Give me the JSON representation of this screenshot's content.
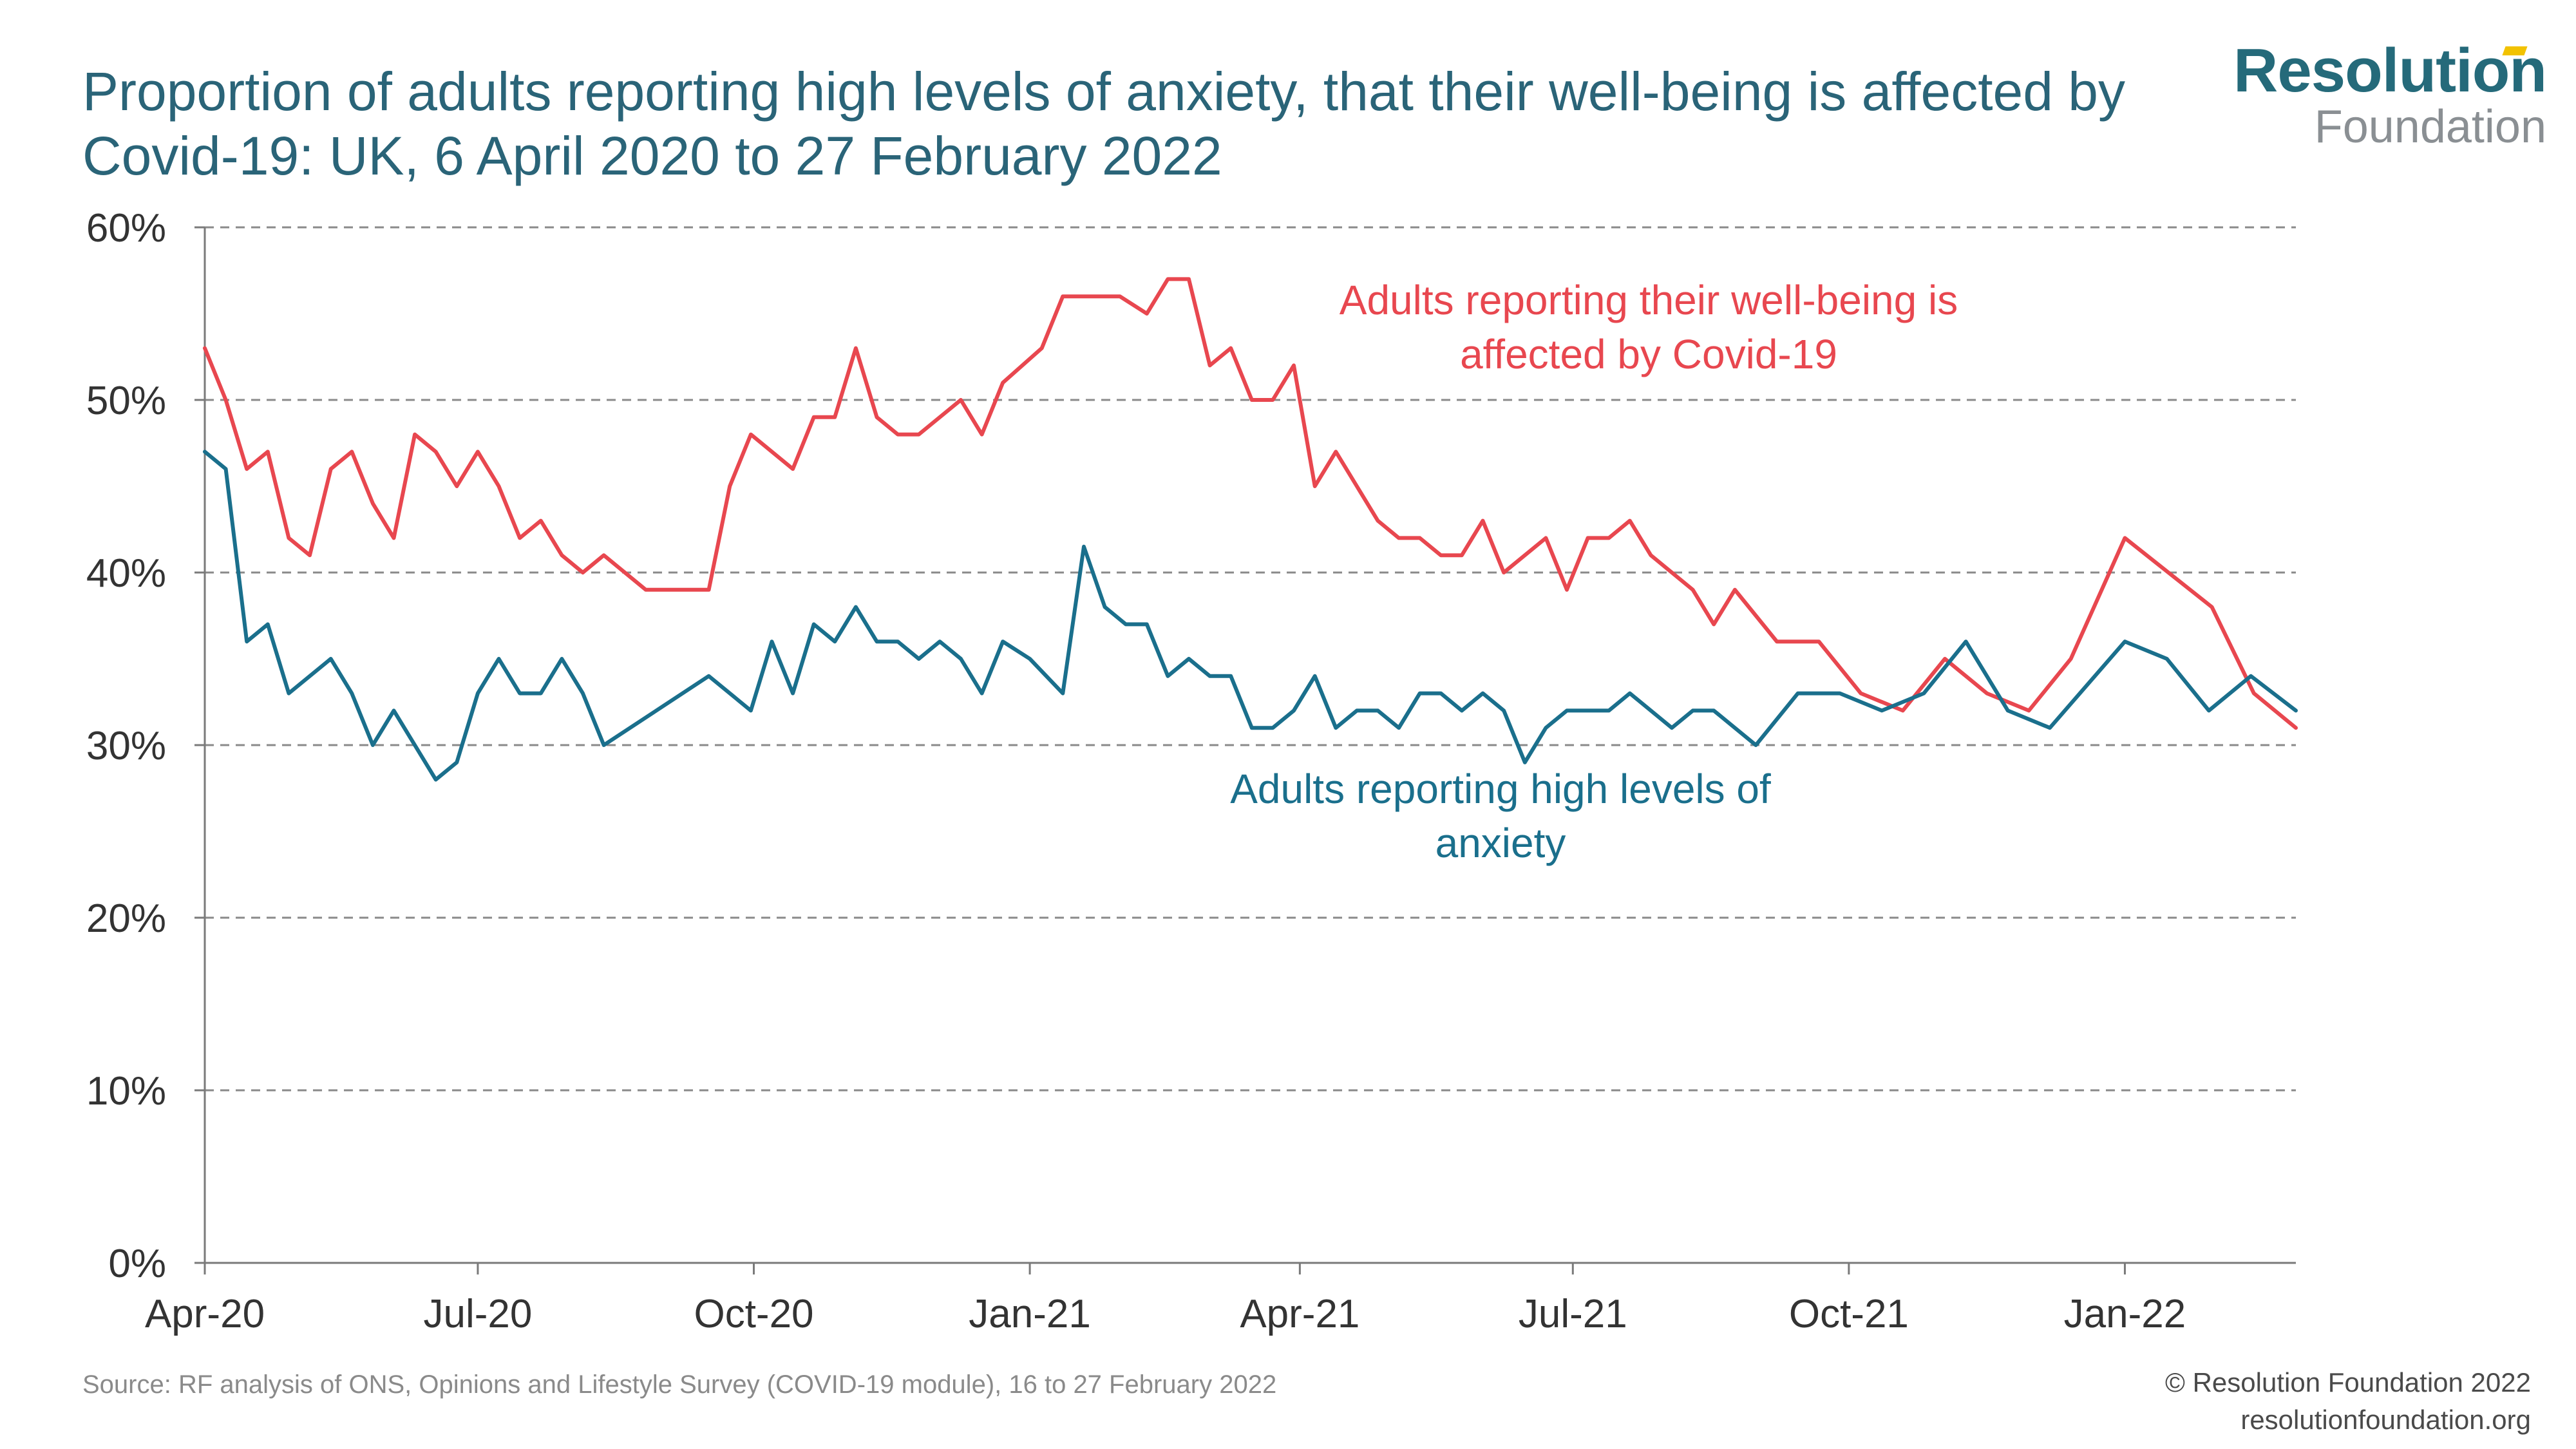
{
  "title": "Proportion of adults reporting high levels of anxiety, that their well-being is affected by Covid-19: UK, 6 April 2020 to 27 February 2022",
  "logo": {
    "line1": "Resolution",
    "line2": "Foundation"
  },
  "source": "Source: RF analysis of ONS, Opinions and Lifestyle Survey (COVID-19 module), 16 to 27 February 2022",
  "copyright": {
    "line1": "© Resolution Foundation 2022",
    "line2": "resolutionfoundation.org"
  },
  "colors": {
    "wellbeing": "#e8474f",
    "anxiety": "#1a6f8c",
    "axis": "#7a7a7a",
    "grid": "#8a8a8a",
    "text": "#333333"
  },
  "chart_data": {
    "type": "line",
    "ylim": [
      0,
      60
    ],
    "xlim": [
      "2020-04-01",
      "2022-02-27"
    ],
    "yticks": [
      0,
      10,
      20,
      30,
      40,
      50,
      60
    ],
    "ytick_labels": [
      "0%",
      "10%",
      "20%",
      "30%",
      "40%",
      "50%",
      "60%"
    ],
    "xticks": [
      "2020-04-01",
      "2020-07-01",
      "2020-10-01",
      "2021-01-01",
      "2021-04-01",
      "2021-07-01",
      "2021-10-01",
      "2022-01-01"
    ],
    "xtick_labels": [
      "Apr-20",
      "Jul-20",
      "Oct-20",
      "Jan-21",
      "Apr-21",
      "Jul-21",
      "Oct-21",
      "Jan-22"
    ],
    "grid": "horizontal dashed",
    "series": [
      {
        "name": "Adults reporting their well-being is affected by Covid-19",
        "label_lines": [
          "Adults reporting their well-being is",
          "affected by Covid-19"
        ],
        "color": "#e8474f",
        "points": [
          [
            "2020-04-01",
            53
          ],
          [
            "2020-04-08",
            50
          ],
          [
            "2020-04-15",
            46
          ],
          [
            "2020-04-22",
            47
          ],
          [
            "2020-04-29",
            42
          ],
          [
            "2020-05-06",
            41
          ],
          [
            "2020-05-13",
            46
          ],
          [
            "2020-05-20",
            47
          ],
          [
            "2020-05-27",
            44
          ],
          [
            "2020-06-03",
            42
          ],
          [
            "2020-06-10",
            48
          ],
          [
            "2020-06-17",
            47
          ],
          [
            "2020-06-24",
            45
          ],
          [
            "2020-07-01",
            47
          ],
          [
            "2020-07-08",
            45
          ],
          [
            "2020-07-15",
            42
          ],
          [
            "2020-07-22",
            43
          ],
          [
            "2020-07-29",
            41
          ],
          [
            "2020-08-05",
            40
          ],
          [
            "2020-08-12",
            41
          ],
          [
            "2020-08-26",
            39
          ],
          [
            "2020-09-16",
            39
          ],
          [
            "2020-09-23",
            45
          ],
          [
            "2020-09-30",
            48
          ],
          [
            "2020-10-14",
            46
          ],
          [
            "2020-10-21",
            49
          ],
          [
            "2020-10-28",
            49
          ],
          [
            "2020-11-04",
            53
          ],
          [
            "2020-11-11",
            49
          ],
          [
            "2020-11-18",
            48
          ],
          [
            "2020-11-25",
            48
          ],
          [
            "2020-12-09",
            50
          ],
          [
            "2020-12-16",
            48
          ],
          [
            "2020-12-23",
            51
          ],
          [
            "2021-01-05",
            53
          ],
          [
            "2021-01-12",
            56
          ],
          [
            "2021-01-31",
            56
          ],
          [
            "2021-02-09",
            55
          ],
          [
            "2021-02-16",
            57
          ],
          [
            "2021-02-23",
            57
          ],
          [
            "2021-03-02",
            52
          ],
          [
            "2021-03-09",
            53
          ],
          [
            "2021-03-16",
            50
          ],
          [
            "2021-03-23",
            50
          ],
          [
            "2021-03-30",
            52
          ],
          [
            "2021-04-06",
            45
          ],
          [
            "2021-04-13",
            47
          ],
          [
            "2021-04-20",
            45
          ],
          [
            "2021-04-27",
            43
          ],
          [
            "2021-05-04",
            42
          ],
          [
            "2021-05-11",
            42
          ],
          [
            "2021-05-18",
            41
          ],
          [
            "2021-05-25",
            41
          ],
          [
            "2021-06-01",
            43
          ],
          [
            "2021-06-08",
            40
          ],
          [
            "2021-06-22",
            42
          ],
          [
            "2021-06-29",
            39
          ],
          [
            "2021-07-06",
            42
          ],
          [
            "2021-07-13",
            42
          ],
          [
            "2021-07-20",
            43
          ],
          [
            "2021-07-27",
            41
          ],
          [
            "2021-08-10",
            39
          ],
          [
            "2021-08-17",
            37
          ],
          [
            "2021-08-24",
            39
          ],
          [
            "2021-09-07",
            36
          ],
          [
            "2021-09-21",
            36
          ],
          [
            "2021-10-05",
            33
          ],
          [
            "2021-10-19",
            32
          ],
          [
            "2021-11-02",
            35
          ],
          [
            "2021-11-16",
            33
          ],
          [
            "2021-11-30",
            32
          ],
          [
            "2021-12-14",
            35
          ],
          [
            "2022-01-01",
            42
          ],
          [
            "2022-01-30",
            38
          ],
          [
            "2022-02-13",
            33
          ],
          [
            "2022-02-27",
            31
          ]
        ]
      },
      {
        "name": "Adults reporting high levels of anxiety",
        "label_lines": [
          "Adults reporting high levels of",
          "anxiety"
        ],
        "color": "#1a6f8c",
        "points": [
          [
            "2020-04-01",
            47
          ],
          [
            "2020-04-08",
            46
          ],
          [
            "2020-04-15",
            36
          ],
          [
            "2020-04-22",
            37
          ],
          [
            "2020-04-29",
            33
          ],
          [
            "2020-05-13",
            35
          ],
          [
            "2020-05-20",
            33
          ],
          [
            "2020-05-27",
            30
          ],
          [
            "2020-06-03",
            32
          ],
          [
            "2020-06-17",
            28
          ],
          [
            "2020-06-24",
            29
          ],
          [
            "2020-07-01",
            33
          ],
          [
            "2020-07-08",
            35
          ],
          [
            "2020-07-15",
            33
          ],
          [
            "2020-07-22",
            33
          ],
          [
            "2020-07-29",
            35
          ],
          [
            "2020-08-05",
            33
          ],
          [
            "2020-08-12",
            30
          ],
          [
            "2020-09-16",
            34
          ],
          [
            "2020-09-30",
            32
          ],
          [
            "2020-10-07",
            36
          ],
          [
            "2020-10-14",
            33
          ],
          [
            "2020-10-21",
            37
          ],
          [
            "2020-10-28",
            36
          ],
          [
            "2020-11-04",
            38
          ],
          [
            "2020-11-11",
            36
          ],
          [
            "2020-11-18",
            36
          ],
          [
            "2020-11-25",
            35
          ],
          [
            "2020-12-02",
            36
          ],
          [
            "2020-12-09",
            35
          ],
          [
            "2020-12-16",
            33
          ],
          [
            "2020-12-23",
            36
          ],
          [
            "2021-01-01",
            35
          ],
          [
            "2021-01-12",
            33
          ],
          [
            "2021-01-19",
            41.5
          ],
          [
            "2021-01-26",
            38
          ],
          [
            "2021-02-02",
            37
          ],
          [
            "2021-02-09",
            37
          ],
          [
            "2021-02-16",
            34
          ],
          [
            "2021-02-23",
            35
          ],
          [
            "2021-03-02",
            34
          ],
          [
            "2021-03-09",
            34
          ],
          [
            "2021-03-16",
            31
          ],
          [
            "2021-03-23",
            31
          ],
          [
            "2021-03-30",
            32
          ],
          [
            "2021-04-06",
            34
          ],
          [
            "2021-04-13",
            31
          ],
          [
            "2021-04-20",
            32
          ],
          [
            "2021-04-27",
            32
          ],
          [
            "2021-05-04",
            31
          ],
          [
            "2021-05-11",
            33
          ],
          [
            "2021-05-18",
            33
          ],
          [
            "2021-05-25",
            32
          ],
          [
            "2021-06-01",
            33
          ],
          [
            "2021-06-08",
            32
          ],
          [
            "2021-06-15",
            29
          ],
          [
            "2021-06-22",
            31
          ],
          [
            "2021-06-29",
            32
          ],
          [
            "2021-07-06",
            32
          ],
          [
            "2021-07-13",
            32
          ],
          [
            "2021-07-20",
            33
          ],
          [
            "2021-08-03",
            31
          ],
          [
            "2021-08-10",
            32
          ],
          [
            "2021-08-17",
            32
          ],
          [
            "2021-08-31",
            30
          ],
          [
            "2021-09-14",
            33
          ],
          [
            "2021-09-28",
            33
          ],
          [
            "2021-10-12",
            32
          ],
          [
            "2021-10-26",
            33
          ],
          [
            "2021-11-09",
            36
          ],
          [
            "2021-11-23",
            32
          ],
          [
            "2021-12-07",
            31
          ],
          [
            "2022-01-01",
            36
          ],
          [
            "2022-01-15",
            35
          ],
          [
            "2022-01-29",
            32
          ],
          [
            "2022-02-12",
            34
          ],
          [
            "2022-02-27",
            32
          ]
        ]
      }
    ]
  }
}
